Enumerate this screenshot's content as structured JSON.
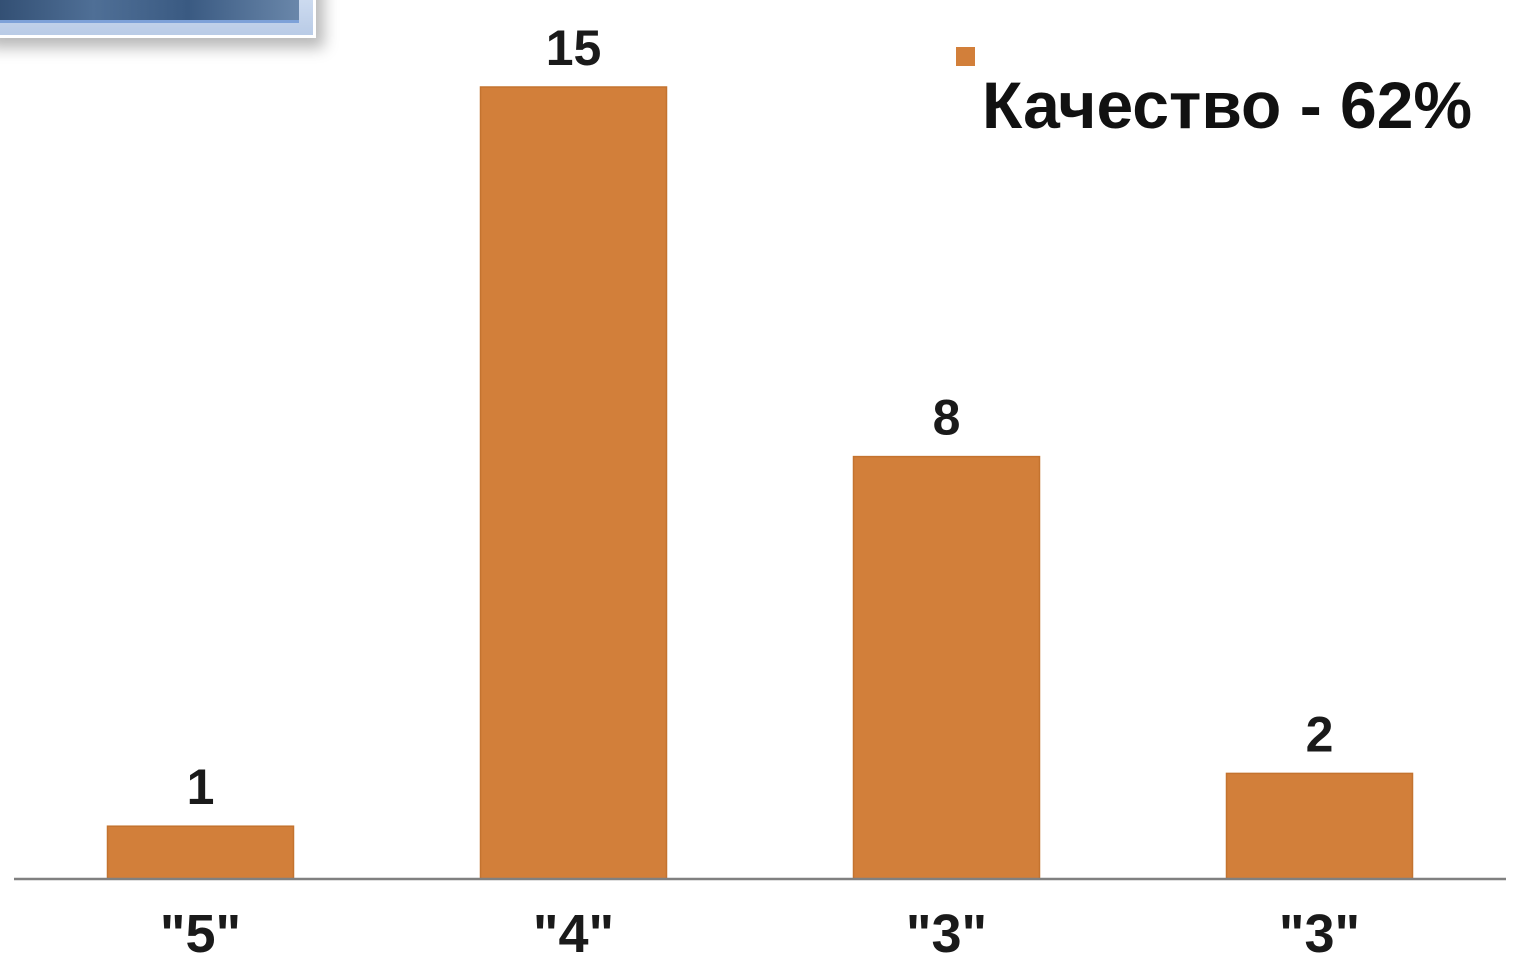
{
  "chart_data": {
    "type": "bar",
    "categories": [
      "\"5\"",
      "\"4\"",
      "\"3\"",
      "\"3\""
    ],
    "series": [
      {
        "name": "Качество - 62%",
        "values": [
          1,
          15,
          8,
          2
        ],
        "color": "#d27f3a"
      }
    ],
    "data_labels": [
      "1",
      "15",
      "8",
      "2"
    ],
    "ylim": [
      0,
      15
    ],
    "grid": false,
    "legend_position": "top-right"
  },
  "colors": {
    "bar": "#d27f3a",
    "bar_border": "#c4732f",
    "axis": "#808080",
    "legend_marker": "#d27f3a"
  }
}
